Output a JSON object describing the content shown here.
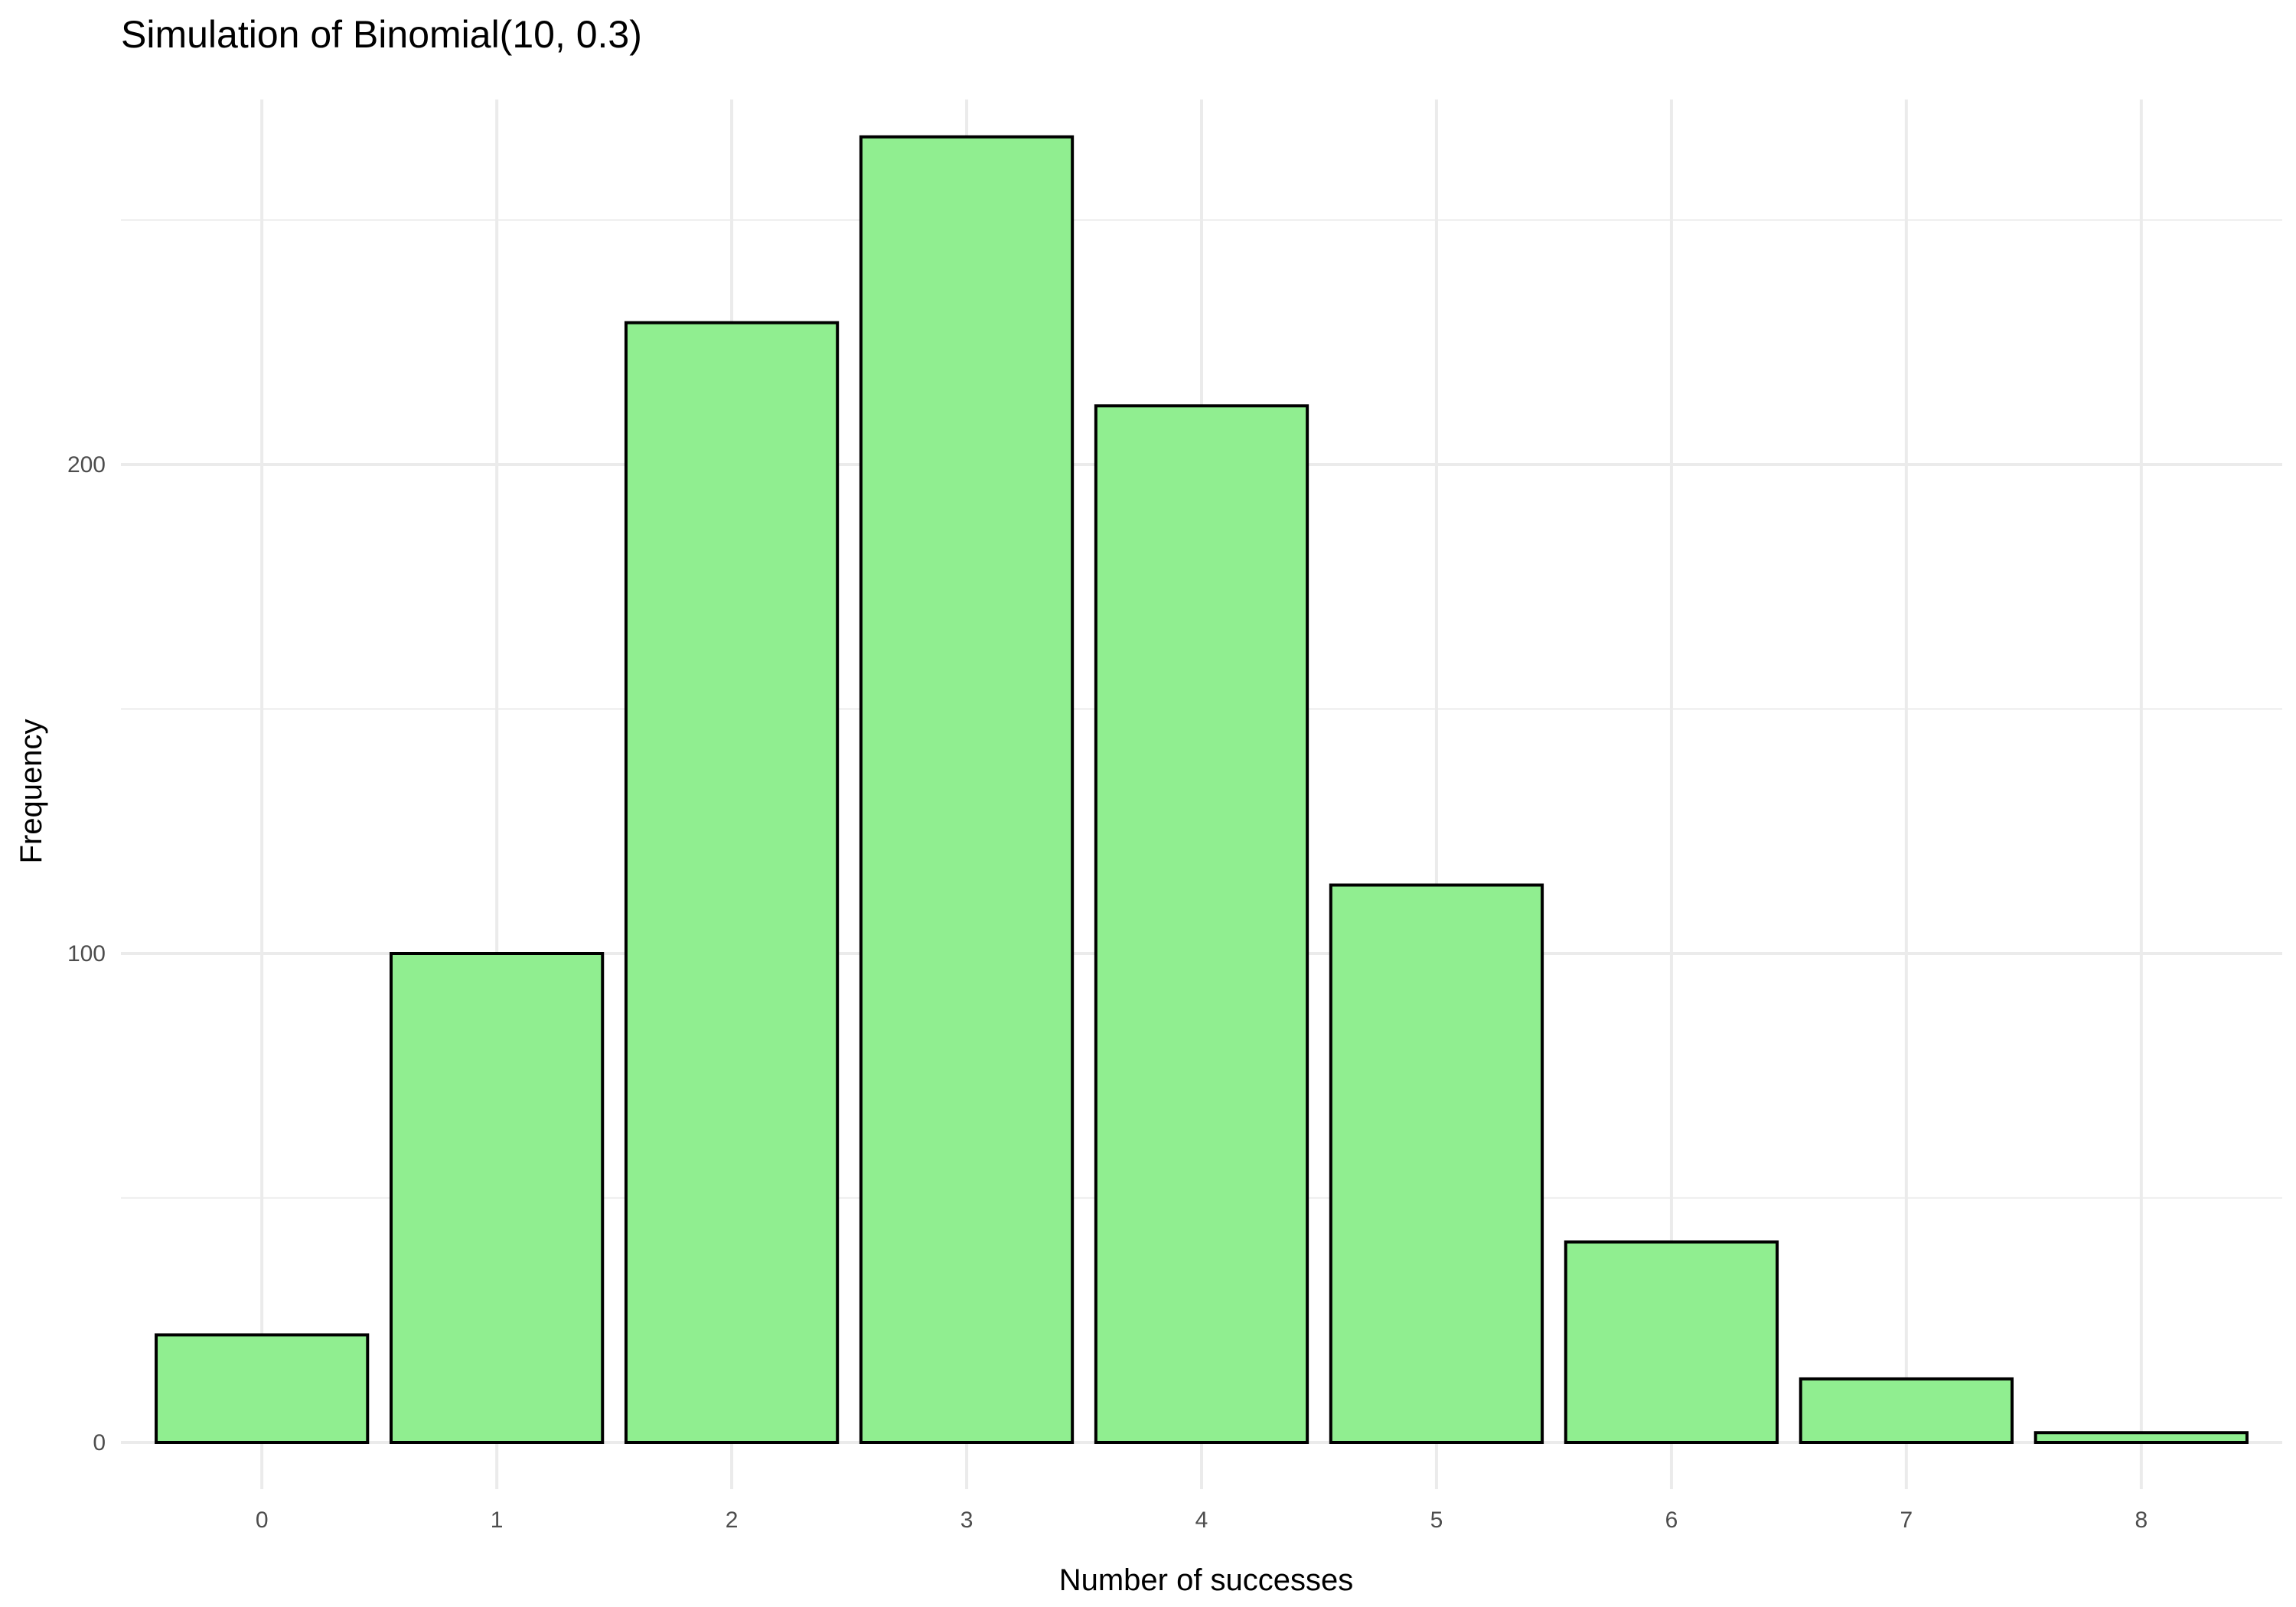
{
  "chart_data": {
    "type": "bar",
    "title": "Simulation of Binomial(10, 0.3)",
    "xlabel": "Number of successes",
    "ylabel": "Frequency",
    "categories": [
      "0",
      "1",
      "2",
      "3",
      "4",
      "5",
      "6",
      "7",
      "8"
    ],
    "values": [
      22,
      100,
      229,
      267,
      212,
      114,
      41,
      13,
      2
    ],
    "ylim": [
      0,
      267
    ],
    "yticks": [
      "0",
      "100",
      "200"
    ],
    "grid": true,
    "bar_fill": "#90ee90",
    "bar_outline": "#000000"
  }
}
